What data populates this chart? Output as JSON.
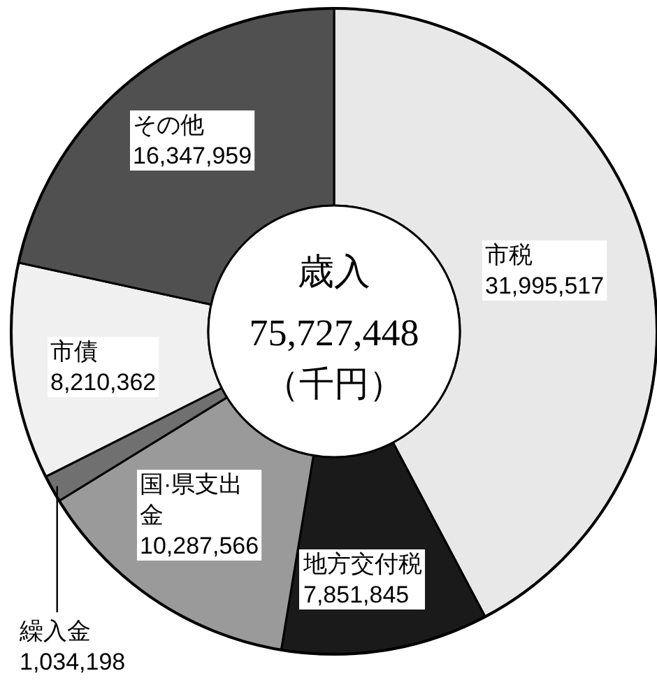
{
  "chart_data": {
    "type": "donut",
    "title": "歳入",
    "subtitle": "75,727,448",
    "annotations": [
      "（千円）"
    ],
    "categories": [
      "市税",
      "地方交付税",
      "国·県支出金",
      "繰入金",
      "市債",
      "その他"
    ],
    "values": [
      31995517,
      7851845,
      10287566,
      1034198,
      8210362,
      16347959
    ],
    "value_labels": [
      "31,995,517",
      "7,851,845",
      "10,287,566",
      "1,034,198",
      "8,210,362",
      "16,347,959"
    ],
    "colors": [
      "#e8e8e8",
      "#1a1a1a",
      "#9a9a9a",
      "#707070",
      "#f0f0f0",
      "#505050"
    ]
  }
}
